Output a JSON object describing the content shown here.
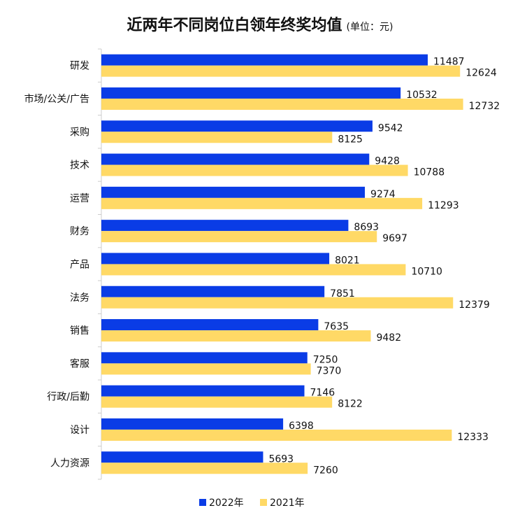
{
  "chart_data": {
    "type": "bar",
    "orientation": "horizontal",
    "title": "近两年不同岗位白领年终奖均值",
    "subtitle": "(单位：元)",
    "categories": [
      "研发",
      "市场/公关/广告",
      "采购",
      "技术",
      "运营",
      "财务",
      "产品",
      "法务",
      "销售",
      "客服",
      "行政/后勤",
      "设计",
      "人力资源"
    ],
    "series": [
      {
        "name": "2022年",
        "color": "#0A3CE6",
        "values": [
          11487,
          10532,
          9542,
          9428,
          9274,
          8693,
          8021,
          7851,
          7635,
          7250,
          7146,
          6398,
          5693
        ]
      },
      {
        "name": "2021年",
        "color": "#FFD966",
        "values": [
          12624,
          12732,
          8125,
          10788,
          11293,
          9697,
          10710,
          12379,
          9482,
          7370,
          8122,
          12333,
          7260
        ]
      }
    ],
    "xlim": [
      0,
      13000
    ],
    "grid": false,
    "data_labels": true,
    "legend": "bottom"
  }
}
